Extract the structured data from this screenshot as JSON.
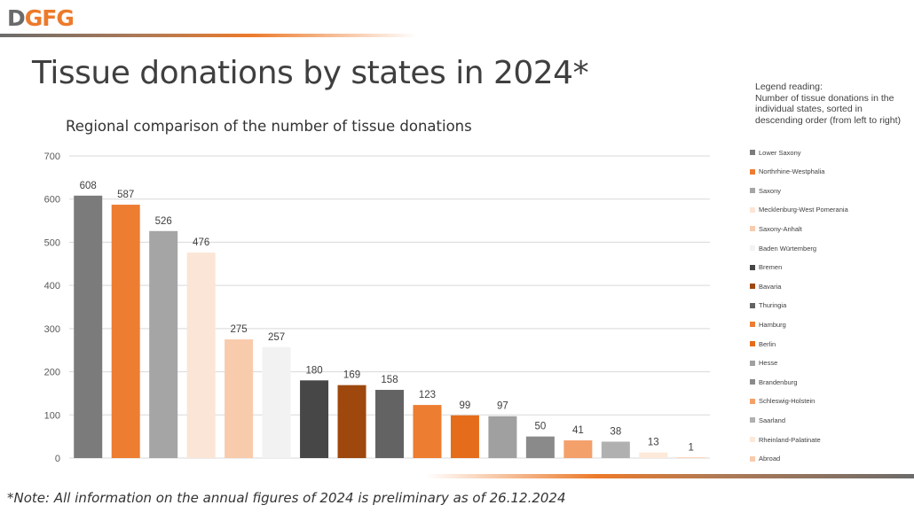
{
  "header": {
    "logo_text_1": "D",
    "logo_text_2": "GFG"
  },
  "page": {
    "title": "Tissue donations by states in 2024*",
    "note": "*Note: All information on the annual figures of 2024 is preliminary as of 26.12.2024"
  },
  "legend_header": {
    "line1": "Legend reading:",
    "line2": "Number of tissue donations in the individual states, sorted in descending order (from left to right)"
  },
  "colors": {
    "dark_gray": "#7b7b7b",
    "orange": "#ed7d31",
    "light_gray": "#a5a5a5",
    "peach": "#fbe5d6",
    "light_orange": "#f8cbad",
    "off_white": "#f2f2f2",
    "charcoal": "#4a4a4a",
    "brown": "#9e480e",
    "mid_gray": "#636363",
    "orange2": "#ed7d31",
    "orange3": "#e46c1b"
  },
  "chart_data": {
    "type": "bar",
    "title": "Regional comparison of the number of tissue donations",
    "xlabel": "",
    "ylabel": "",
    "ylim": [
      0,
      700
    ],
    "yticks": [
      0,
      100,
      200,
      300,
      400,
      500,
      600,
      700
    ],
    "grid": true,
    "legend_position": "right",
    "categories": [
      "Lower Saxony",
      "Northrhine-Westphalia",
      "Saxony",
      "Mecklenburg-West Pomerania",
      "Saxony-Anhalt",
      "Baden Würtemberg",
      "Bremen",
      "Bavaria",
      "Thuringia",
      "Hamburg",
      "Berlin",
      "Hesse",
      "Brandenburg",
      "Schleswig-Holstein",
      "Saarland",
      "Rheinland-Palatinate",
      "Abroad"
    ],
    "values": [
      608,
      587,
      526,
      476,
      275,
      257,
      180,
      169,
      158,
      123,
      99,
      97,
      50,
      41,
      38,
      13,
      1
    ],
    "bar_colors": [
      "#7b7b7b",
      "#ed7d31",
      "#a5a5a5",
      "#fbe5d6",
      "#f8cbad",
      "#f2f2f2",
      "#474747",
      "#9e480e",
      "#636363",
      "#ed7d31",
      "#e46c1b",
      "#a0a0a0",
      "#8a8a8a",
      "#f4a06a",
      "#b0b0b0",
      "#fde9d9",
      "#f8cbad"
    ]
  }
}
